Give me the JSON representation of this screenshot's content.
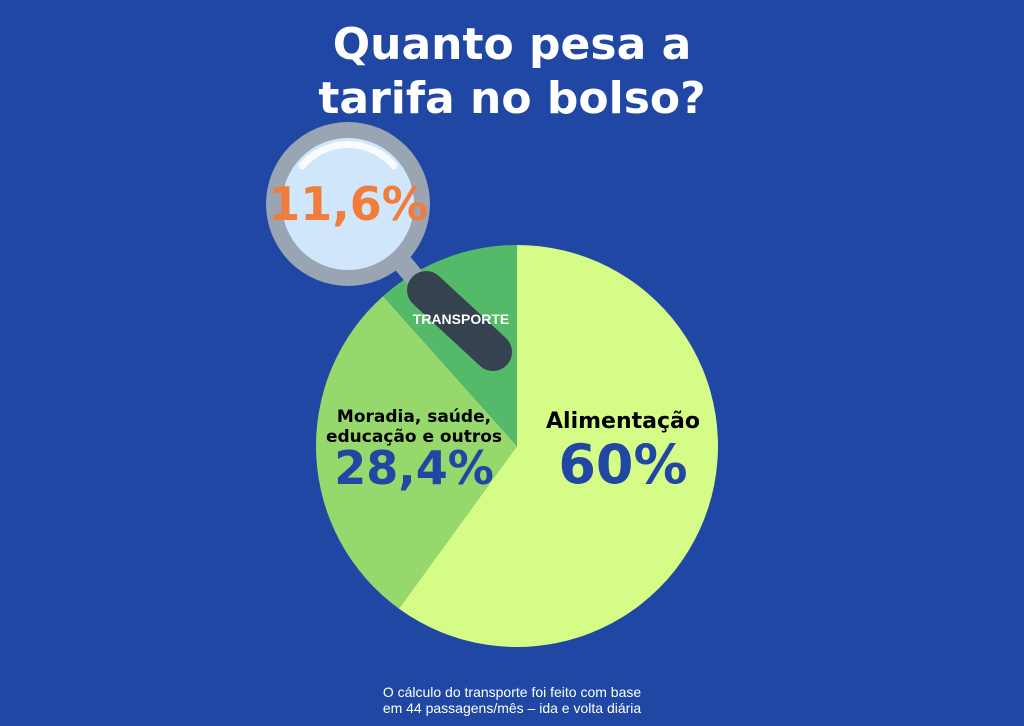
{
  "title": {
    "line1": "Quanto pesa a",
    "line2": "tarifa no bolso?"
  },
  "chart_data": {
    "type": "pie",
    "slices": [
      {
        "label": "Alimentação",
        "value": 60,
        "value_label": "60%",
        "color": "#d5fc86"
      },
      {
        "label": "Moradia, saúde, educação e outros",
        "label_lines": [
          "Moradia, saúde,",
          "educação e outros"
        ],
        "value": 28.4,
        "value_label": "28,4%",
        "color": "#97d86d"
      },
      {
        "label": "TRANSPORTE",
        "value": 11.6,
        "value_label": "11,6%",
        "color": "#55b96a"
      }
    ],
    "colors": {
      "background": "#1f47a3",
      "value_text": "#1f47a3",
      "highlight_value": "#f07d3c",
      "lens_fill": "#cfe6fb",
      "lens_ring": "#9aa5b4",
      "handle": "#36424f"
    },
    "icon": "magnifying-glass-icon"
  },
  "footnote": {
    "line1": "O cálculo do transporte foi feito com base",
    "line2": "em 44 passagens/mês – ida e volta diária"
  }
}
